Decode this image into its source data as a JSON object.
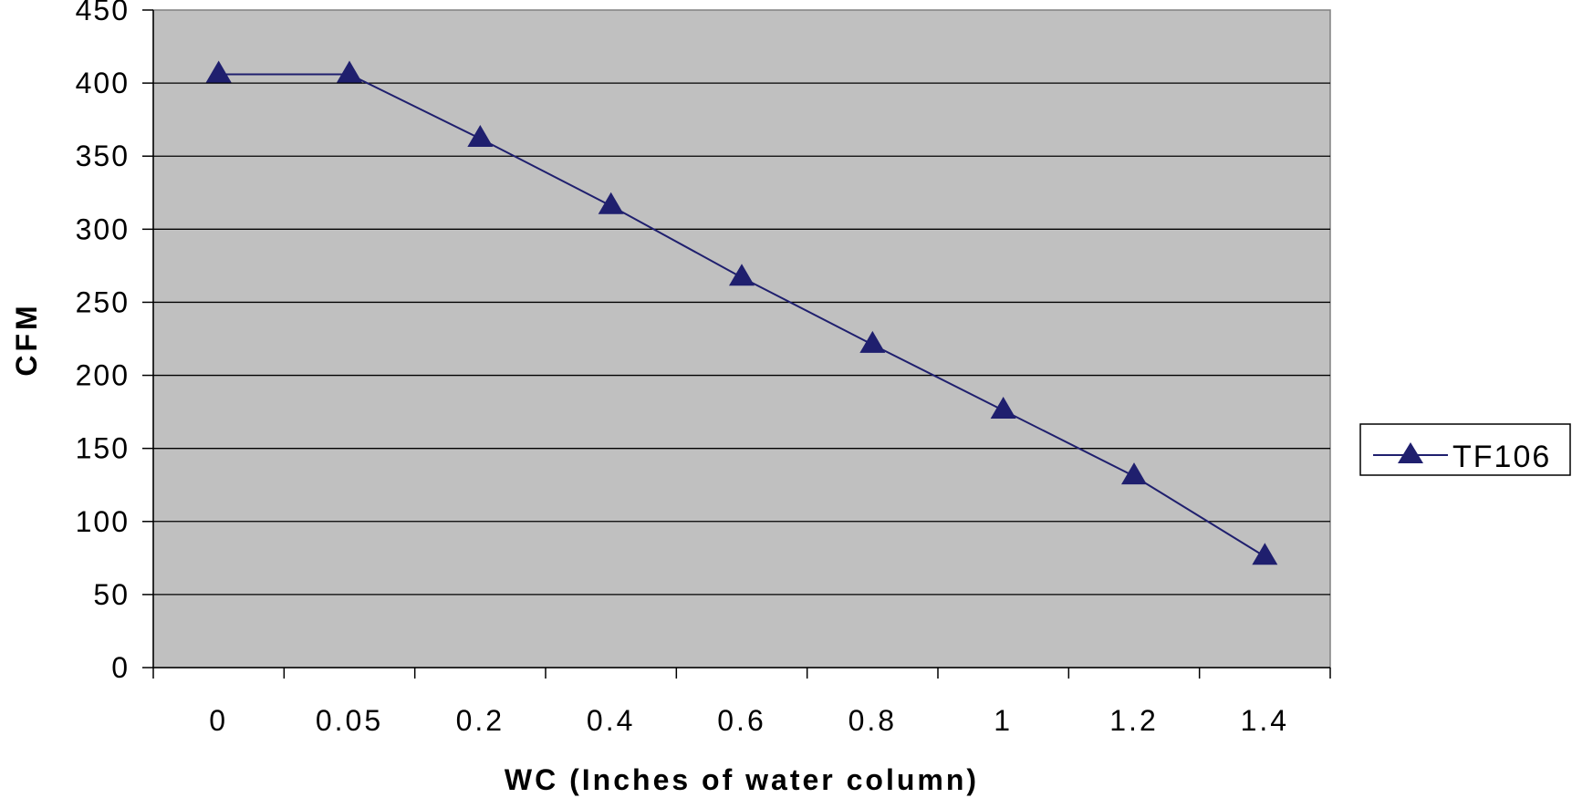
{
  "chart_data": {
    "type": "line",
    "title": "",
    "xlabel": "WC (Inches of water column)",
    "ylabel": "CFM",
    "categories": [
      "0",
      "0.05",
      "0.2",
      "0.4",
      "0.6",
      "0.8",
      "1",
      "1.2",
      "1.4"
    ],
    "series": [
      {
        "name": "TF106",
        "values": [
          406,
          406,
          362,
          316,
          267,
          221,
          176,
          131,
          76
        ],
        "marker": "triangle",
        "color": "#1f1f6e"
      }
    ],
    "ylim": [
      0,
      450
    ],
    "yticks": [
      0,
      50,
      100,
      150,
      200,
      250,
      300,
      350,
      400,
      450
    ],
    "grid": true,
    "legend_position": "right",
    "plot_background": "#c0c0c0"
  }
}
